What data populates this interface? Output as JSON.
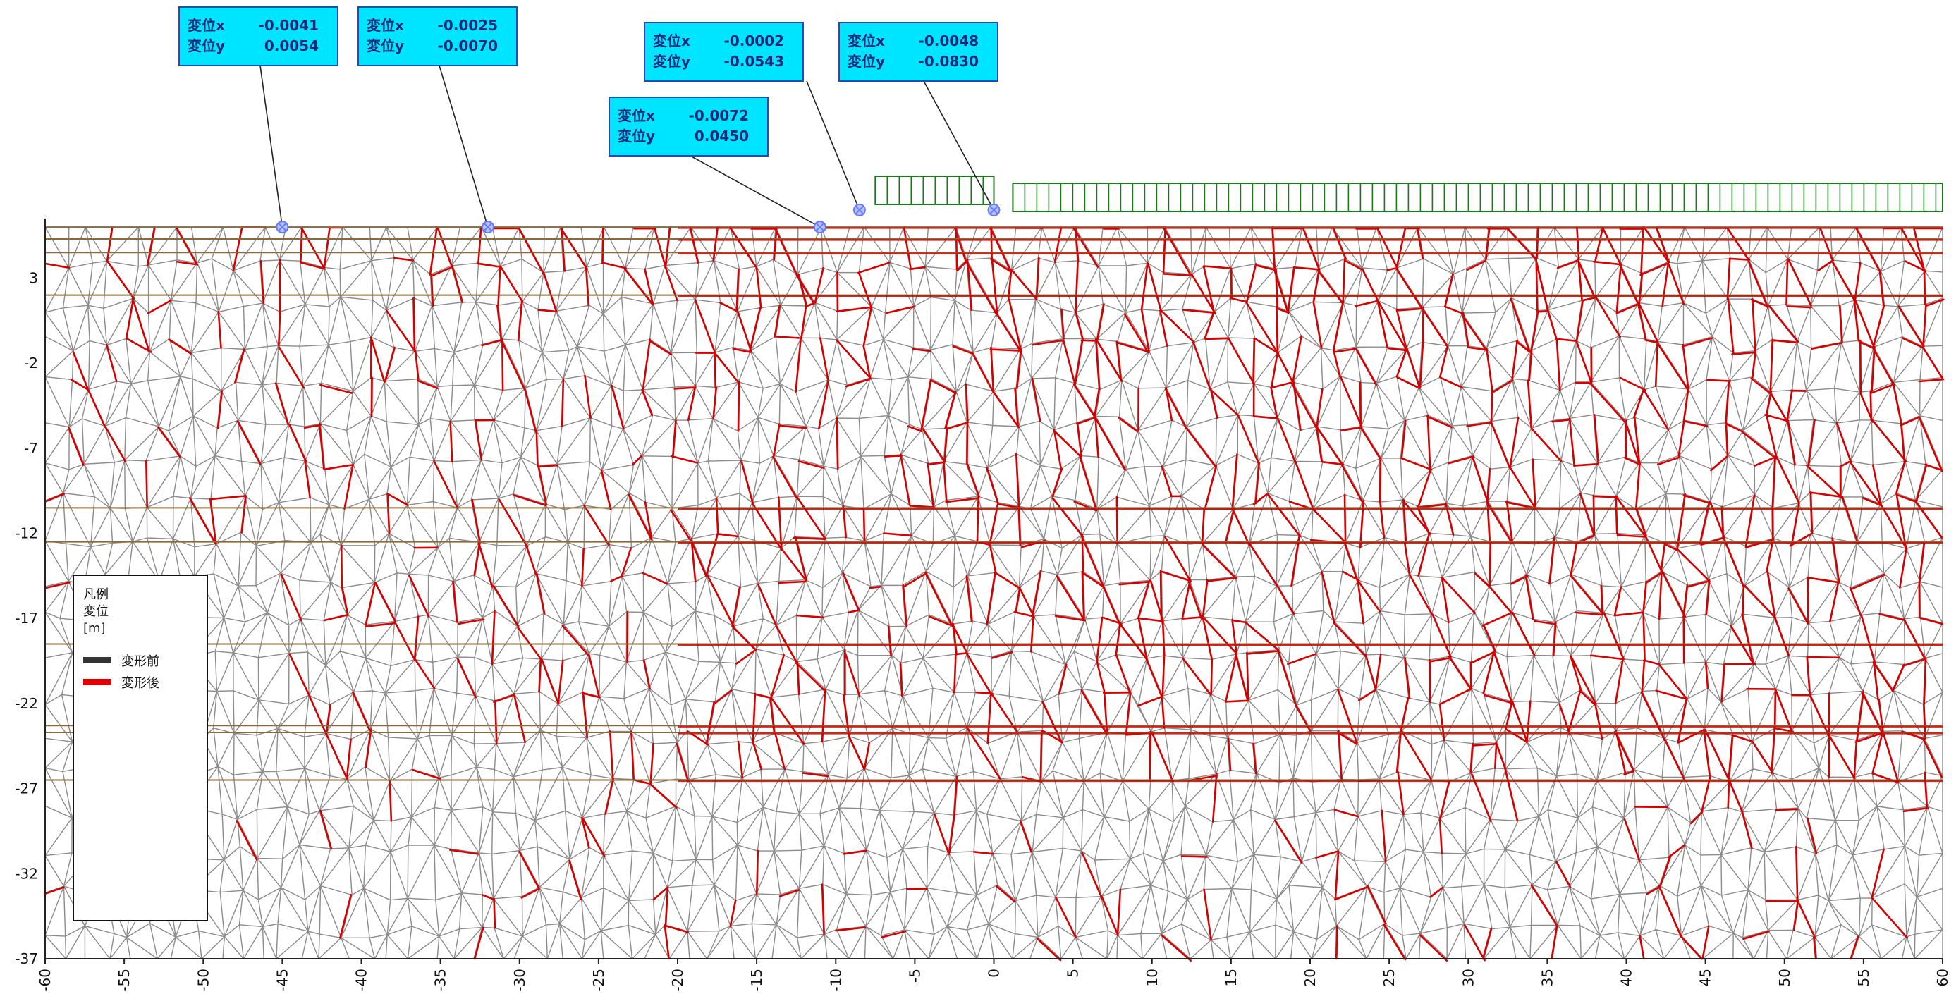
{
  "chart_data": {
    "type": "diagram",
    "x_axis": {
      "range": [
        -60,
        60
      ],
      "ticks": [
        "-60",
        "-55",
        "-50",
        "-45",
        "-40",
        "-35",
        "-30",
        "-25",
        "-20",
        "-15",
        "-10",
        "-5",
        "0",
        "5",
        "10",
        "15",
        "20",
        "25",
        "30",
        "35",
        "40",
        "45",
        "50",
        "55",
        "60"
      ]
    },
    "y_axis": {
      "range": [
        -37,
        6.5
      ],
      "ticks": [
        "3",
        "-2",
        "-7",
        "-12",
        "-17",
        "-22",
        "-27",
        "-32",
        "-37"
      ]
    },
    "layer_elevations": [
      6.0,
      5.3,
      4.5,
      2.0,
      -10.5,
      -12.5,
      -18.5,
      -23.3,
      -23.7,
      -26.5
    ],
    "points": [
      {
        "x": -45,
        "y": 6.0,
        "label_x": "変位x",
        "label_y": "変位y",
        "value_x": "-0.0041",
        "value_y": "0.0054"
      },
      {
        "x": -32,
        "y": 6.0,
        "label_x": "変位x",
        "label_y": "変位y",
        "value_x": "-0.0025",
        "value_y": "-0.0070"
      },
      {
        "x": -11,
        "y": 6.0,
        "label_x": "変位x",
        "label_y": "変位y",
        "value_x": "-0.0072",
        "value_y": "0.0450"
      },
      {
        "x": -8.5,
        "y": 7.0,
        "label_x": "変位x",
        "label_y": "変位y",
        "value_x": "-0.0002",
        "value_y": "-0.0543"
      },
      {
        "x": 0,
        "y": 7.0,
        "label_x": "変位x",
        "label_y": "変位y",
        "value_x": "-0.0048",
        "value_y": "-0.0830"
      }
    ],
    "legend": {
      "title_line1": "凡例",
      "title_line2": "変位",
      "unit": "[m]",
      "items": [
        {
          "label": "変形前",
          "color": "#333333"
        },
        {
          "label": "変形後",
          "color": "#e00000"
        }
      ]
    },
    "colors": {
      "mesh_before": "#8c8c8c",
      "mesh_after": "#d40000",
      "load": "#1a7a1a",
      "callout_fill": "#00e5ff",
      "callout_border": "#1a4fb8",
      "layer_line": "#8a6a3a",
      "point_marker": "#6a7aff"
    }
  }
}
